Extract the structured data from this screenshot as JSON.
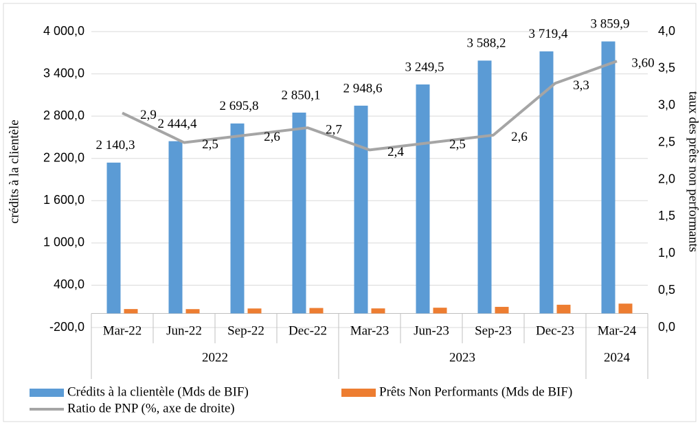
{
  "chart_data": {
    "type": "bar-line",
    "y_label": "crédits à la clientèle",
    "y2_label": "taux des  prêts non performants",
    "category_groups": [
      {
        "name": "2022",
        "categories": [
          "Mar-22",
          "Jun-22",
          "Sep-22",
          "Dec-22"
        ]
      },
      {
        "name": "2023",
        "categories": [
          "Mar-23",
          "Jun-23",
          "Sep-23",
          "Dec-23"
        ]
      },
      {
        "name": "2024",
        "categories": [
          "Mar-24"
        ]
      }
    ],
    "series": [
      {
        "name": "Crédits à la clientèle (Mds de BIF)",
        "type": "bar",
        "color": "#5b9bd5",
        "values": [
          2140.3,
          2444.4,
          2695.8,
          2850.1,
          2948.6,
          3249.5,
          3588.2,
          3719.4,
          3859.9
        ],
        "value_labels": [
          "2 140,3",
          "2 444,4",
          "2 695,8",
          "2 850,1",
          "2 948,6",
          "3 249,5",
          "3 588,2",
          "3 719,4",
          "3 859,9"
        ]
      },
      {
        "name": "Prêts Non Performants (Mds de BIF)",
        "type": "bar",
        "color": "#ed7d31",
        "values": [
          62,
          61,
          70,
          77,
          71,
          81,
          93,
          123,
          139
        ]
      },
      {
        "name": "Ratio de PNP (%, axe de droite)",
        "type": "line",
        "axis": "y2",
        "color": "#a5a5a5",
        "values": [
          2.9,
          2.5,
          2.6,
          2.7,
          2.4,
          2.5,
          2.6,
          3.3,
          3.6
        ],
        "value_labels": [
          "2,9",
          "2,5",
          "2,6",
          "2,7",
          "2,4",
          "2,5",
          "2,6",
          "3,3",
          "3,60"
        ]
      }
    ],
    "ylim": [
      -200,
      4000
    ],
    "yticks": [
      {
        "value": -200,
        "label": "-200,0"
      },
      {
        "value": 400,
        "label": "400,0"
      },
      {
        "value": 1000,
        "label": "1 000,0"
      },
      {
        "value": 1600,
        "label": "1 600,0"
      },
      {
        "value": 2200,
        "label": "2 200,0"
      },
      {
        "value": 2800,
        "label": "2 800,0"
      },
      {
        "value": 3400,
        "label": "3 400,0"
      },
      {
        "value": 4000,
        "label": "4 000,0"
      }
    ],
    "y2lim": [
      0,
      4
    ],
    "y2ticks": [
      {
        "value": 0,
        "label": "0,0"
      },
      {
        "value": 0.5,
        "label": "0,5"
      },
      {
        "value": 1,
        "label": "1,0"
      },
      {
        "value": 1.5,
        "label": "1,5"
      },
      {
        "value": 2,
        "label": "2,0"
      },
      {
        "value": 2.5,
        "label": "2,5"
      },
      {
        "value": 3,
        "label": "3,0"
      },
      {
        "value": 3.5,
        "label": "3,5"
      },
      {
        "value": 4,
        "label": "4,0"
      }
    ],
    "grid": true
  }
}
